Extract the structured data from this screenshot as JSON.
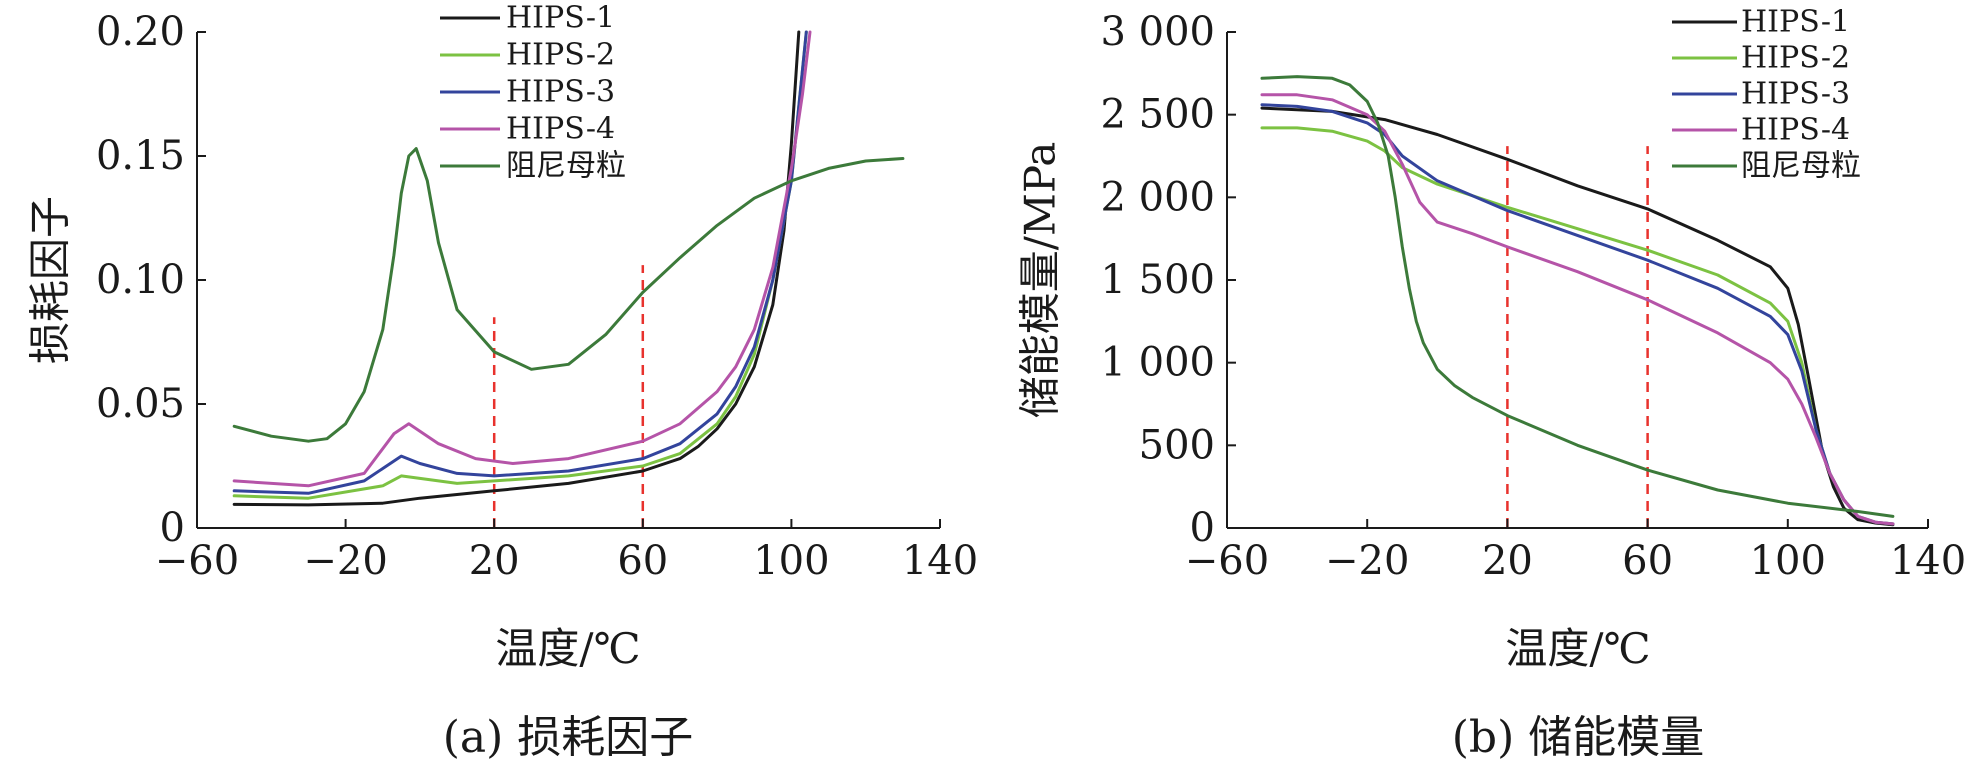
{
  "chart_data": [
    {
      "type": "line",
      "caption": "(a) 损耗因子",
      "xlabel": "温度/℃",
      "ylabel": "损耗因子",
      "xlim": [
        -60,
        140
      ],
      "ylim": [
        0,
        0.2
      ],
      "xticks": [
        -60,
        -20,
        20,
        60,
        100,
        140
      ],
      "xtick_labels": [
        "−60",
        "−20",
        "20",
        "60",
        "100",
        "140"
      ],
      "yticks": [
        0,
        0.05,
        0.1,
        0.15,
        0.2
      ],
      "ytick_labels": [
        "0",
        "0.05",
        "0.10",
        "0.15",
        "0.20"
      ],
      "ref_lines": [
        {
          "x": 20,
          "y_range": [
            0,
            0.085
          ],
          "color": "#e8322d",
          "style": "dashed"
        },
        {
          "x": 60,
          "y_range": [
            0,
            0.106
          ],
          "color": "#e8322d",
          "style": "dashed"
        }
      ],
      "legend_position": "top-center",
      "series": [
        {
          "name": "HIPS-1",
          "color": "#1a1a1a",
          "x": [
            -50,
            -30,
            -10,
            0,
            20,
            40,
            60,
            70,
            75,
            80,
            85,
            90,
            95,
            98,
            100,
            102
          ],
          "y": [
            0.0095,
            0.0093,
            0.01,
            0.012,
            0.015,
            0.018,
            0.023,
            0.028,
            0.033,
            0.04,
            0.05,
            0.065,
            0.09,
            0.12,
            0.155,
            0.2
          ]
        },
        {
          "name": "HIPS-2",
          "color": "#7cc242",
          "x": [
            -50,
            -30,
            -10,
            -5,
            0,
            10,
            20,
            40,
            60,
            70,
            80,
            85,
            90,
            95,
            100,
            102,
            104
          ],
          "y": [
            0.013,
            0.012,
            0.017,
            0.021,
            0.02,
            0.018,
            0.019,
            0.021,
            0.025,
            0.03,
            0.042,
            0.053,
            0.07,
            0.1,
            0.14,
            0.17,
            0.2
          ]
        },
        {
          "name": "HIPS-3",
          "color": "#33449c",
          "x": [
            -50,
            -30,
            -15,
            -5,
            0,
            10,
            20,
            40,
            60,
            70,
            80,
            85,
            90,
            95,
            100,
            102,
            104
          ],
          "y": [
            0.015,
            0.014,
            0.019,
            0.029,
            0.026,
            0.022,
            0.021,
            0.023,
            0.028,
            0.034,
            0.046,
            0.057,
            0.073,
            0.1,
            0.14,
            0.17,
            0.2
          ]
        },
        {
          "name": "HIPS-4",
          "color": "#b554a8",
          "x": [
            -50,
            -30,
            -15,
            -7,
            -3,
            5,
            15,
            25,
            40,
            60,
            70,
            80,
            85,
            90,
            95,
            100,
            103,
            105
          ],
          "y": [
            0.019,
            0.017,
            0.022,
            0.038,
            0.042,
            0.034,
            0.028,
            0.026,
            0.028,
            0.035,
            0.042,
            0.055,
            0.065,
            0.08,
            0.105,
            0.145,
            0.175,
            0.2
          ]
        },
        {
          "name": "阻尼母粒",
          "color": "#3c7a3a",
          "x": [
            -50,
            -40,
            -30,
            -25,
            -20,
            -15,
            -10,
            -7,
            -5,
            -3,
            -1,
            2,
            5,
            10,
            20,
            30,
            40,
            50,
            60,
            70,
            80,
            90,
            100,
            110,
            120,
            130
          ],
          "y": [
            0.041,
            0.037,
            0.035,
            0.036,
            0.042,
            0.055,
            0.08,
            0.11,
            0.135,
            0.15,
            0.153,
            0.14,
            0.115,
            0.088,
            0.071,
            0.064,
            0.066,
            0.078,
            0.095,
            0.109,
            0.122,
            0.133,
            0.14,
            0.145,
            0.148,
            0.149
          ]
        }
      ]
    },
    {
      "type": "line",
      "caption": "(b) 储能模量",
      "xlabel": "温度/℃",
      "ylabel": "储能模量/MPa",
      "xlim": [
        -60,
        140
      ],
      "ylim": [
        0,
        3000
      ],
      "xticks": [
        -60,
        -20,
        20,
        60,
        100,
        140
      ],
      "xtick_labels": [
        "−60",
        "−20",
        "20",
        "60",
        "100",
        "140"
      ],
      "yticks": [
        0,
        500,
        1000,
        1500,
        2000,
        2500,
        3000
      ],
      "ytick_labels": [
        "0",
        "500",
        "1 000",
        "1 500",
        "2 000",
        "2 500",
        "3 000"
      ],
      "ref_lines": [
        {
          "x": 20,
          "y_range": [
            0,
            2310
          ],
          "color": "#e8322d",
          "style": "dashed"
        },
        {
          "x": 60,
          "y_range": [
            0,
            2310
          ],
          "color": "#e8322d",
          "style": "dashed"
        }
      ],
      "legend_position": "top-right",
      "series": [
        {
          "name": "HIPS-1",
          "color": "#1a1a1a",
          "x": [
            -50,
            -30,
            -15,
            0,
            20,
            40,
            60,
            80,
            95,
            100,
            103,
            106,
            110,
            113,
            116,
            120,
            125,
            130
          ],
          "y": [
            2540,
            2520,
            2470,
            2380,
            2230,
            2070,
            1930,
            1740,
            1580,
            1450,
            1230,
            900,
            450,
            250,
            120,
            50,
            30,
            20
          ]
        },
        {
          "name": "HIPS-2",
          "color": "#7cc242",
          "x": [
            -50,
            -40,
            -30,
            -20,
            -15,
            -10,
            0,
            20,
            40,
            60,
            80,
            95,
            100,
            104,
            108,
            112,
            116,
            120,
            125,
            130
          ],
          "y": [
            2420,
            2420,
            2400,
            2340,
            2280,
            2180,
            2080,
            1940,
            1810,
            1680,
            1530,
            1360,
            1250,
            1000,
            600,
            330,
            170,
            70,
            35,
            25
          ]
        },
        {
          "name": "HIPS-3",
          "color": "#33449c",
          "x": [
            -50,
            -40,
            -30,
            -20,
            -15,
            -10,
            0,
            20,
            40,
            60,
            80,
            95,
            100,
            104,
            108,
            112,
            116,
            120,
            125,
            130
          ],
          "y": [
            2560,
            2550,
            2520,
            2450,
            2380,
            2250,
            2100,
            1920,
            1770,
            1620,
            1450,
            1280,
            1170,
            950,
            600,
            330,
            170,
            70,
            35,
            25
          ]
        },
        {
          "name": "HIPS-4",
          "color": "#b554a8",
          "x": [
            -50,
            -40,
            -30,
            -20,
            -15,
            -10,
            -5,
            0,
            10,
            20,
            40,
            60,
            80,
            95,
            100,
            104,
            108,
            112,
            116,
            120,
            125,
            130
          ],
          "y": [
            2620,
            2620,
            2590,
            2500,
            2400,
            2200,
            1970,
            1850,
            1780,
            1700,
            1550,
            1380,
            1180,
            1000,
            900,
            750,
            550,
            330,
            170,
            70,
            35,
            25
          ]
        },
        {
          "name": "阻尼母粒",
          "color": "#3c7a3a",
          "x": [
            -50,
            -40,
            -30,
            -25,
            -20,
            -17,
            -14,
            -12,
            -10,
            -8,
            -6,
            -4,
            -2,
            0,
            5,
            10,
            20,
            40,
            60,
            80,
            100,
            120,
            130
          ],
          "y": [
            2720,
            2730,
            2720,
            2680,
            2580,
            2450,
            2250,
            2000,
            1700,
            1450,
            1250,
            1120,
            1040,
            960,
            860,
            790,
            680,
            500,
            350,
            230,
            150,
            100,
            70
          ]
        }
      ]
    }
  ]
}
